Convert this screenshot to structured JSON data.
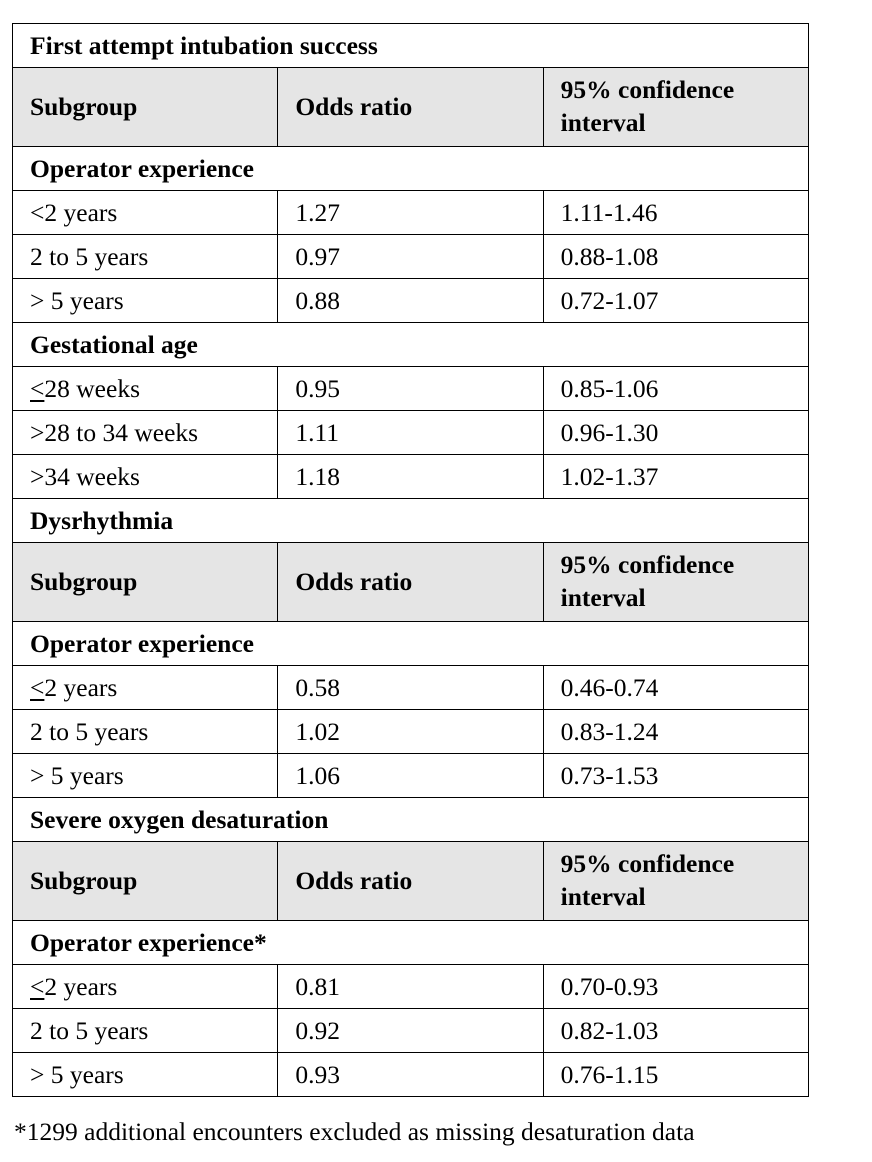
{
  "table": {
    "rows": [
      {
        "kind": "title",
        "text": "First attempt intubation success"
      },
      {
        "kind": "header",
        "subgroup": "Subgroup",
        "odds": "Odds ratio",
        "ci": "95% confidence interval"
      },
      {
        "kind": "group",
        "text": "Operator experience"
      },
      {
        "kind": "data",
        "subgroup": "<2 years",
        "odds": "1.27",
        "ci": "1.11-1.46"
      },
      {
        "kind": "data",
        "subgroup": "2 to 5 years",
        "odds": "0.97",
        "ci": "0.88-1.08"
      },
      {
        "kind": "data",
        "subgroup": "> 5 years",
        "odds": "0.88",
        "ci": "0.72-1.07"
      },
      {
        "kind": "group",
        "text": "Gestational age"
      },
      {
        "kind": "data",
        "subgroup": "≤28 weeks",
        "odds": "0.95",
        "ci": "0.85-1.06"
      },
      {
        "kind": "data",
        "subgroup": ">28 to 34 weeks",
        "odds": "1.11",
        "ci": "0.96-1.30"
      },
      {
        "kind": "data",
        "subgroup": ">34 weeks",
        "odds": "1.18",
        "ci": "1.02-1.37"
      },
      {
        "kind": "title",
        "text": "Dysrhythmia"
      },
      {
        "kind": "header",
        "subgroup": "Subgroup",
        "odds": "Odds ratio",
        "ci": "95% confidence interval"
      },
      {
        "kind": "group",
        "text": "Operator experience"
      },
      {
        "kind": "data",
        "subgroup": "≤2 years",
        "odds": "0.58",
        "ci": "0.46-0.74"
      },
      {
        "kind": "data",
        "subgroup": "2 to 5 years",
        "odds": "1.02",
        "ci": "0.83-1.24"
      },
      {
        "kind": "data",
        "subgroup": "> 5 years",
        "odds": "1.06",
        "ci": "0.73-1.53"
      },
      {
        "kind": "title",
        "text": "Severe oxygen desaturation"
      },
      {
        "kind": "header",
        "subgroup": "Subgroup",
        "odds": "Odds ratio",
        "ci": "95% confidence interval"
      },
      {
        "kind": "group",
        "text": "Operator experience*"
      },
      {
        "kind": "data",
        "subgroup": "≤2 years",
        "odds": "0.81",
        "ci": "0.70-0.93"
      },
      {
        "kind": "data",
        "subgroup": "2 to 5 years",
        "odds": "0.92",
        "ci": "0.82-1.03"
      },
      {
        "kind": "data",
        "subgroup": "> 5 years",
        "odds": "0.93",
        "ci": "0.76-1.15"
      }
    ]
  },
  "footnote": "*1299 additional encounters excluded as missing desaturation data"
}
